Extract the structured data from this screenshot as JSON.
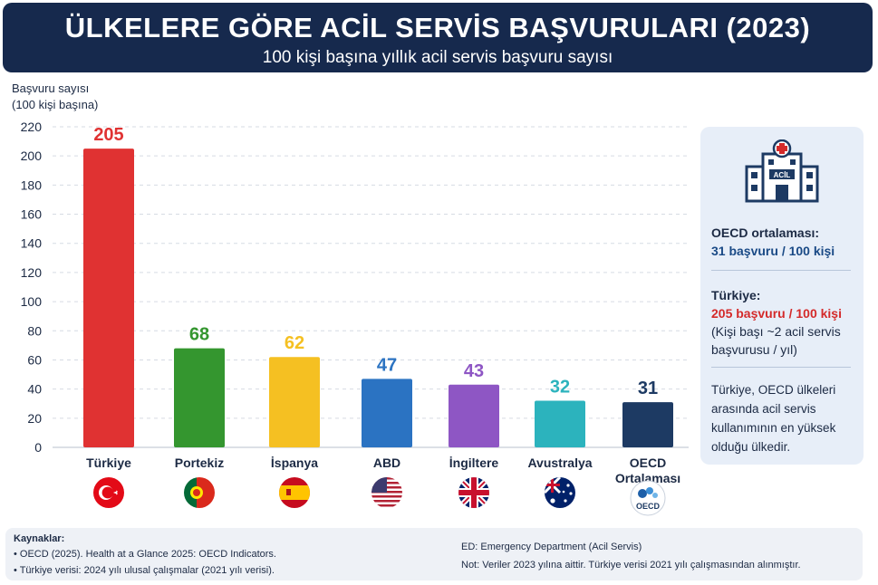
{
  "header": {
    "title": "ÜLKELERE GÖRE ACİL SERVİS BAŞVURULARI (2023)",
    "subtitle": "100 kişi başına yıllık acil servis başvuru sayısı"
  },
  "chart_data": {
    "type": "bar",
    "ylabel_line1": "Başvuru sayısı",
    "ylabel_line2": "(100 kişi başına)",
    "ylim": [
      0,
      220
    ],
    "yticks": [
      0,
      20,
      40,
      60,
      80,
      100,
      120,
      140,
      160,
      180,
      200,
      220
    ],
    "grid": true,
    "categories": [
      "Türkiye",
      "Portekiz",
      "İspanya",
      "ABD",
      "İngiltere",
      "Avustralya",
      "OECD Ortalaması"
    ],
    "values": [
      205,
      68,
      62,
      47,
      43,
      32,
      31
    ],
    "colors": [
      "#e03232",
      "#34962f",
      "#f5c022",
      "#2b73c2",
      "#8e56c4",
      "#2cb3bd",
      "#1d3a63"
    ],
    "flags": [
      "turkey-flag",
      "portugal-flag",
      "spain-flag",
      "usa-flag",
      "uk-flag",
      "australia-flag",
      "oecd-logo"
    ]
  },
  "sidebar": {
    "oecd_title": "OECD ortalaması:",
    "oecd_value": "31 başvuru / 100 kişi",
    "tr_title": "Türkiye:",
    "tr_value": "205 başvuru / 100 kişi",
    "tr_note_1": "(Kişi başı ~2 acil servis",
    "tr_note_2": "başvurusu / yıl)",
    "summary_1": "Türkiye, OECD ülkeleri",
    "summary_2": "arasında acil servis",
    "summary_3": "kullanımının en yüksek",
    "summary_4": "olduğu ülkedir.",
    "icon": "hospital-icon",
    "sign_text": "ACİL"
  },
  "footer": {
    "sources_label": "Kaynaklar:",
    "source_1": "• OECD (2025). Health at a Glance 2025: OECD Indicators.",
    "source_2": "• Türkiye verisi: 2024 yılı ulusal çalışmalar (2021 yılı verisi).",
    "note_ed": "ED: Emergency Department (Acil Servis)",
    "note_data": "Not: Veriler 2023 yılına aittir. Türkiye verisi 2021 yılı çalışmasından alınmıştır."
  },
  "oecd_logo_text": "OECD"
}
